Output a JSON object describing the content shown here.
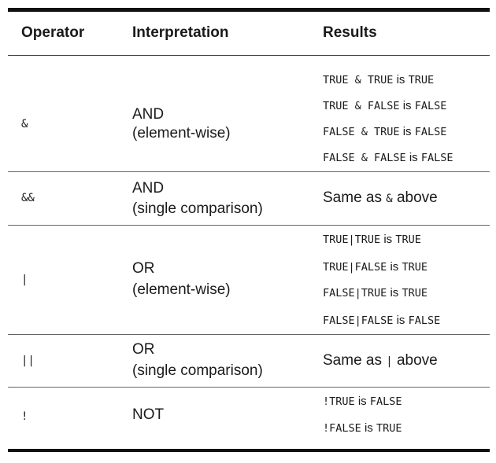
{
  "headers": {
    "operator": "Operator",
    "interpretation": "Interpretation",
    "results": "Results"
  },
  "rows": [
    {
      "operator": "&",
      "interp_line1": "AND",
      "interp_line2": "(element-wise)",
      "results": [
        {
          "a": "TRUE & TRUE",
          "is": "is",
          "b": "TRUE"
        },
        {
          "a": "TRUE & FALSE",
          "is": "is",
          "b": "FALSE"
        },
        {
          "a": "FALSE & TRUE",
          "is": "is",
          "b": "FALSE"
        },
        {
          "a": "FALSE & FALSE",
          "is": "is",
          "b": "FALSE"
        }
      ]
    },
    {
      "operator": "&&",
      "interp_line1": "AND",
      "interp_line2": "(single comparison)",
      "same": {
        "pre": "Same as",
        "code": "&",
        "post": "above"
      }
    },
    {
      "operator": "|",
      "interp_line1": "OR",
      "interp_line2": "(element-wise)",
      "results": [
        {
          "a": "TRUE|TRUE",
          "is": "is",
          "b": "TRUE"
        },
        {
          "a": "TRUE|FALSE",
          "is": "is",
          "b": "TRUE"
        },
        {
          "a": "FALSE|TRUE",
          "is": "is",
          "b": "TRUE"
        },
        {
          "a": "FALSE|FALSE",
          "is": "is",
          "b": "FALSE"
        }
      ]
    },
    {
      "operator": "||",
      "interp_line1": "OR",
      "interp_line2": "(single comparison)",
      "same": {
        "pre": "Same as",
        "code": "|",
        "post": "above"
      }
    },
    {
      "operator": "!",
      "interp_line1": "NOT",
      "results": [
        {
          "a": "!TRUE",
          "is": "is",
          "b": "FALSE"
        },
        {
          "a": "!FALSE",
          "is": "is",
          "b": "TRUE"
        }
      ]
    }
  ]
}
